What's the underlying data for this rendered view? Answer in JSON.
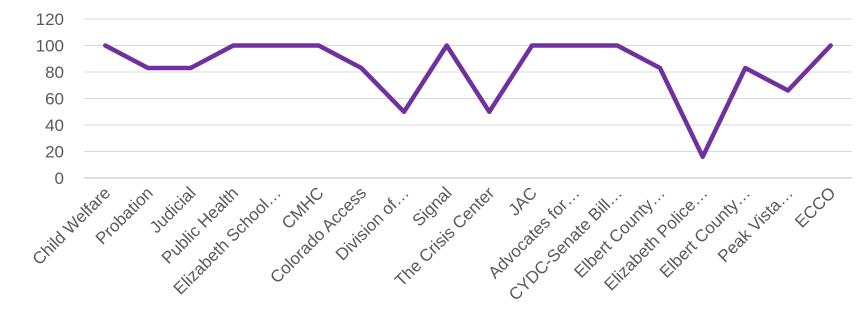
{
  "chart_data": {
    "type": "line",
    "categories": [
      "Child Welfare",
      "Probation",
      "Judicial",
      "Public Health",
      "Elizabeth School…",
      "CMHC",
      "Colorado Access",
      "Division of…",
      "Signal",
      "The Crisis Center",
      "JAC",
      "Advocates for…",
      "CYDC-Senate Bill…",
      "Elbert County…",
      "Elizabeth Police…",
      "Elbert County…",
      "Peak Vista…",
      "ECCO"
    ],
    "series": [
      {
        "values": [
          100,
          83,
          83,
          100,
          100,
          100,
          83,
          50,
          100,
          50,
          100,
          100,
          100,
          83,
          16,
          83,
          66,
          100
        ]
      }
    ],
    "ylim": [
      0,
      120
    ],
    "yticks": [
      0,
      20,
      40,
      60,
      80,
      100,
      120
    ],
    "grid": true,
    "legend": "none",
    "colors": {
      "line": "#7030A0",
      "grid": "#D9D9D9",
      "axis": "#BFBFBF",
      "text": "#595959"
    }
  }
}
